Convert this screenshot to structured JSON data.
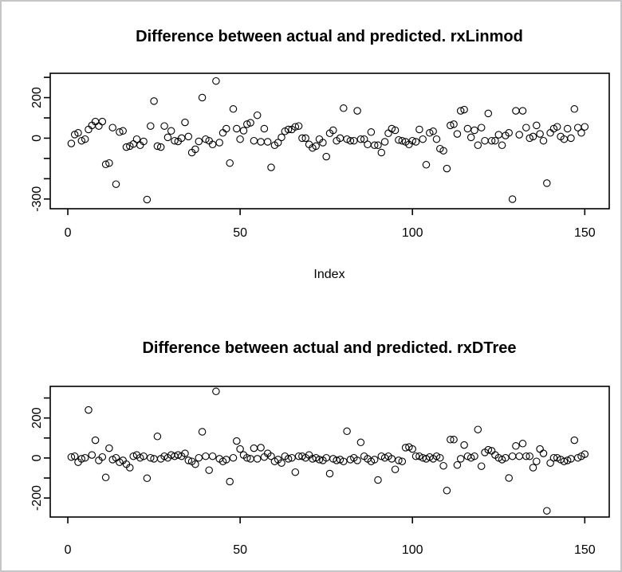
{
  "window": {
    "background_color": "#ffffff",
    "frame_border_color": "#c5c5c7",
    "plot_line_color": "#000000"
  },
  "chart_data": [
    {
      "type": "scatter",
      "title": "Difference between actual and predicted. rxLinmod",
      "xlabel": "Index",
      "ylabel": "",
      "marker": "open-circle",
      "grid": false,
      "xlim": [
        -5.1,
        157.1
      ],
      "ylim": [
        -348,
        320
      ],
      "x_ticks": [
        0,
        50,
        100,
        150
      ],
      "y_ticks": [
        300,
        200,
        100,
        0,
        -100,
        -200,
        -300
      ],
      "y_tick_labels": [
        "200",
        "0",
        "-300"
      ],
      "x_is_index_1_to_n": true,
      "values": [
        -26,
        18,
        26,
        -13,
        -5,
        43,
        63,
        82,
        60,
        82,
        -129,
        -123,
        52,
        -227,
        30,
        36,
        -44,
        -39,
        -29,
        -5,
        -35,
        -16,
        -303,
        60,
        183,
        -39,
        -44,
        60,
        4,
        36,
        -13,
        -16,
        0,
        78,
        8,
        -71,
        -55,
        -16,
        200,
        -5,
        -13,
        -31,
        282,
        -22,
        26,
        47,
        -123,
        144,
        47,
        -5,
        37,
        69,
        76,
        -13,
        113,
        -18,
        47,
        -18,
        -144,
        -35,
        -22,
        4,
        34,
        43,
        43,
        56,
        60,
        0,
        0,
        -31,
        -48,
        -39,
        -5,
        -22,
        -91,
        24,
        39,
        -13,
        0,
        148,
        -5,
        -13,
        -13,
        135,
        -5,
        -5,
        -31,
        30,
        -35,
        -35,
        -71,
        -18,
        24,
        47,
        39,
        -9,
        -13,
        -18,
        -31,
        -13,
        -18,
        43,
        -5,
        -131,
        26,
        34,
        -5,
        -52,
        -62,
        -150,
        63,
        69,
        21,
        135,
        141,
        47,
        4,
        39,
        -35,
        52,
        -13,
        122,
        -13,
        -13,
        17,
        -35,
        13,
        26,
        -301,
        135,
        17,
        135,
        52,
        0,
        8,
        63,
        21,
        -13,
        -222,
        26,
        47,
        56,
        8,
        -5,
        47,
        0,
        144,
        52,
        26,
        56
      ]
    },
    {
      "type": "scatter",
      "title": "Difference between actual and predicted. rxDTree",
      "xlabel": "",
      "ylabel": "",
      "marker": "open-circle",
      "grid": false,
      "xlim": [
        -5.1,
        157.1
      ],
      "ylim": [
        -295,
        358
      ],
      "x_ticks": [
        0,
        50,
        100,
        150
      ],
      "y_ticks": [
        300,
        200,
        100,
        0,
        -100,
        -200
      ],
      "y_tick_labels": [
        "200",
        "0",
        "-200"
      ],
      "x_is_index_1_to_n": true,
      "values": [
        5,
        9,
        -21,
        -4,
        1,
        240,
        15,
        89,
        -12,
        5,
        -97,
        49,
        -8,
        1,
        -21,
        -12,
        -31,
        -48,
        9,
        15,
        1,
        9,
        -101,
        1,
        -4,
        108,
        -4,
        9,
        1,
        15,
        9,
        15,
        9,
        23,
        -12,
        -17,
        -31,
        1,
        131,
        9,
        -61,
        9,
        333,
        -4,
        -17,
        -8,
        -118,
        1,
        85,
        45,
        15,
        1,
        -4,
        49,
        -4,
        52,
        5,
        23,
        9,
        -17,
        -8,
        -25,
        9,
        -4,
        1,
        -71,
        9,
        9,
        1,
        15,
        -4,
        1,
        -8,
        -12,
        1,
        -78,
        -4,
        -12,
        -8,
        -17,
        134,
        -8,
        1,
        -12,
        78,
        9,
        -4,
        -17,
        -8,
        -110,
        9,
        1,
        9,
        -4,
        -57,
        -12,
        -17,
        52,
        55,
        45,
        9,
        9,
        1,
        -4,
        5,
        -4,
        9,
        1,
        -39,
        -163,
        92,
        92,
        -35,
        -4,
        65,
        9,
        1,
        9,
        142,
        -41,
        28,
        41,
        36,
        15,
        1,
        -8,
        1,
        -100,
        9,
        60,
        9,
        72,
        9,
        9,
        -48,
        -17,
        45,
        23,
        -264,
        -25,
        1,
        1,
        -8,
        -17,
        -12,
        -4,
        89,
        1,
        9,
        19
      ]
    }
  ]
}
